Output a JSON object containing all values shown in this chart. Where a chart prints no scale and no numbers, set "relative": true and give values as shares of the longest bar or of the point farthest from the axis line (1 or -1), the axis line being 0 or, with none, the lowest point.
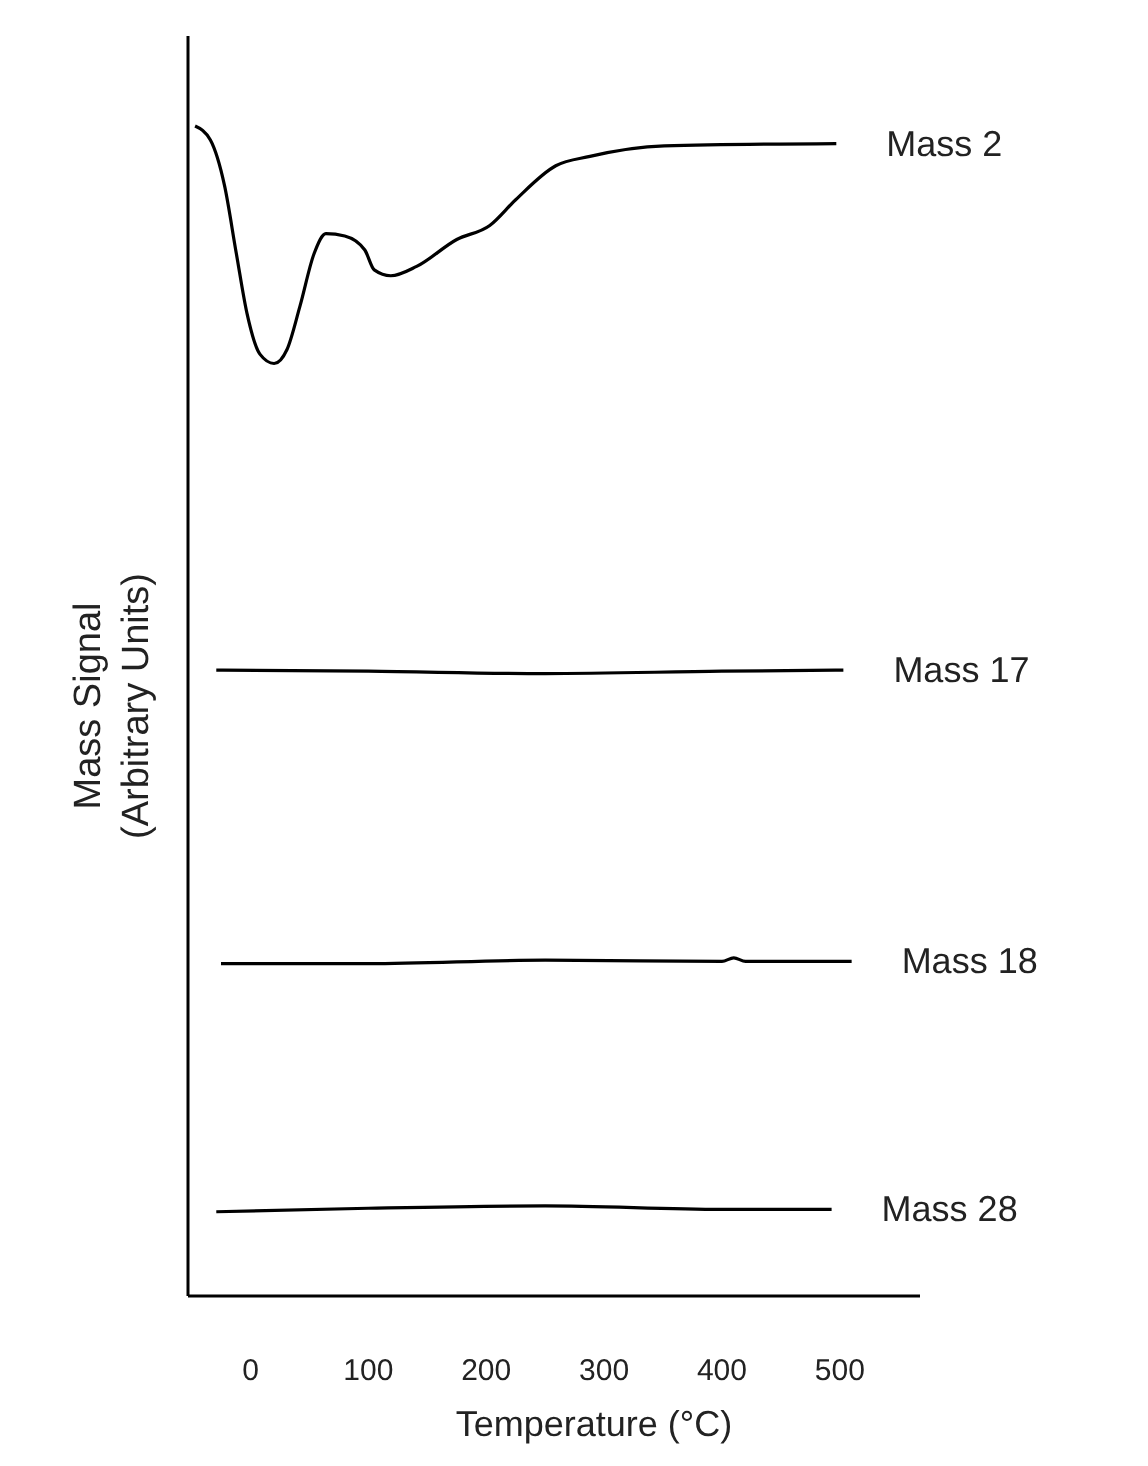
{
  "chart_data": {
    "type": "line",
    "relative": true,
    "xlabel": "Temperature (°C)",
    "ylabel": "Mass Signal\n(Arbitrary Units)",
    "xlim": [
      -53,
      568
    ],
    "xticks": [
      0,
      100,
      200,
      300,
      400,
      500
    ],
    "grid": false,
    "marker": "none",
    "line_style": "solid",
    "series": [
      {
        "name": "Mass 2",
        "color": "#000000",
        "x": [
          -47,
          -34,
          -22,
          -12,
          -3,
          8,
          20,
          31,
          42,
          54,
          64,
          80,
          97,
          105,
          119,
          141,
          175,
          203,
          225,
          259,
          288,
          351,
          497
        ],
        "values": [
          1.0,
          0.988,
          0.949,
          0.891,
          0.84,
          0.805,
          0.797,
          0.809,
          0.846,
          0.891,
          0.908,
          0.906,
          0.894,
          0.877,
          0.872,
          0.88,
          0.903,
          0.915,
          0.937,
          0.966,
          0.974,
          0.983,
          0.985
        ]
      },
      {
        "name": "Mass 17",
        "color": "#000000",
        "x": [
          -29,
          100,
          250,
          400,
          503
        ],
        "values": [
          0.535,
          0.534,
          0.532,
          0.534,
          0.535
        ]
      },
      {
        "name": "Mass 18",
        "color": "#000000",
        "x": [
          -25,
          100,
          250,
          400,
          410,
          420,
          510
        ],
        "values": [
          0.284,
          0.284,
          0.287,
          0.286,
          0.289,
          0.286,
          0.286
        ]
      },
      {
        "name": "Mass 28",
        "color": "#000000",
        "x": [
          -29,
          100,
          250,
          400,
          493
        ],
        "values": [
          0.072,
          0.075,
          0.077,
          0.074,
          0.074
        ]
      }
    ]
  }
}
